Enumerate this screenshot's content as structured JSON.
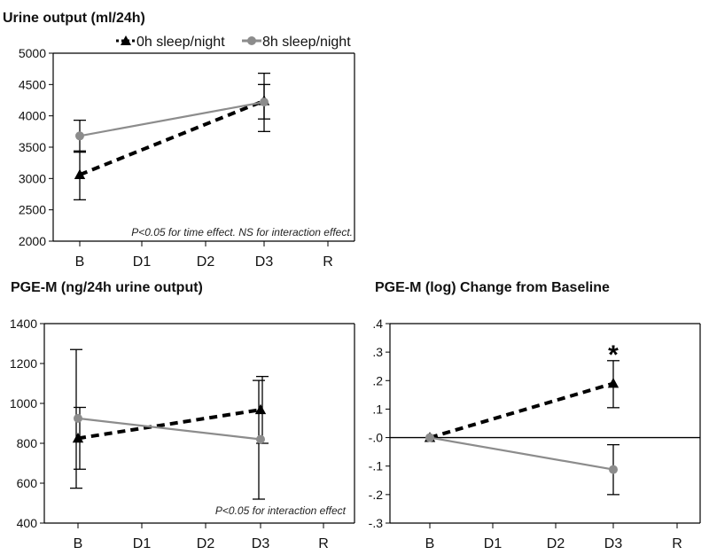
{
  "chart_data": [
    {
      "type": "line",
      "title": "Urine output (ml/24h)",
      "categories": [
        "B",
        "D1",
        "D2",
        "D3",
        "R"
      ],
      "ylim": [
        2000,
        5000
      ],
      "yticks": [
        2000,
        2500,
        3000,
        3500,
        4000,
        4500,
        5000
      ],
      "ytick_labels": [
        "2000",
        "2500",
        "3000",
        "3500",
        "4000",
        "4500",
        "5000"
      ],
      "grid": false,
      "legend_position": "top",
      "annotation": "P<0.05 for time effect. NS for interaction effect.",
      "series": [
        {
          "name": "0h sleep/night",
          "color": "#000000",
          "marker": "triangle",
          "dash": true,
          "x": [
            "B",
            "D3"
          ],
          "values": [
            3060,
            4240
          ],
          "err_low": [
            2660,
            3750
          ],
          "err_high": [
            3440,
            4680
          ]
        },
        {
          "name": "8h sleep/night",
          "color": "#8c8c8c",
          "marker": "circle",
          "dash": false,
          "x": [
            "B",
            "D3"
          ],
          "values": [
            3680,
            4220
          ],
          "err_low": [
            3420,
            3950
          ],
          "err_high": [
            3930,
            4500
          ]
        }
      ]
    },
    {
      "type": "line",
      "title": "PGE-M (ng/24h urine output)",
      "categories": [
        "B",
        "D1",
        "D2",
        "D3",
        "R"
      ],
      "ylim": [
        400,
        1400
      ],
      "yticks": [
        400,
        600,
        800,
        1000,
        1200,
        1400
      ],
      "ytick_labels": [
        "400",
        "600",
        "800",
        "1000",
        "1200",
        "1400"
      ],
      "grid": false,
      "annotation": "P<0.05 for interaction effect",
      "series": [
        {
          "name": "0h sleep/night",
          "color": "#000000",
          "marker": "triangle",
          "dash": true,
          "x": [
            "B",
            "D3"
          ],
          "values": [
            825,
            968
          ],
          "err_low": [
            670,
            800
          ],
          "err_high": [
            980,
            1135
          ]
        },
        {
          "name": "8h sleep/night",
          "color": "#8c8c8c",
          "marker": "circle",
          "dash": false,
          "x": [
            "B",
            "D3"
          ],
          "values": [
            925,
            820
          ],
          "err_low": [
            575,
            520
          ],
          "err_high": [
            1270,
            1115
          ]
        }
      ]
    },
    {
      "type": "line",
      "title": "PGE-M (log) Change from Baseline",
      "categories": [
        "B",
        "D1",
        "D2",
        "D3",
        "R"
      ],
      "ylim": [
        -0.3,
        0.4
      ],
      "yticks": [
        -0.3,
        -0.2,
        -0.1,
        0,
        0.1,
        0.2,
        0.3,
        0.4
      ],
      "ytick_labels": [
        "-.3",
        "-.2",
        "-.1",
        "-.0",
        ".1",
        ".2",
        ".3",
        ".4"
      ],
      "grid": false,
      "zero_line": true,
      "annotation": "*",
      "annotation_at": "D3",
      "series": [
        {
          "name": "0h sleep/night",
          "color": "#000000",
          "marker": "triangle",
          "dash": true,
          "x": [
            "B",
            "D3"
          ],
          "values": [
            0.0,
            0.19
          ],
          "err_low": [
            0.0,
            0.105
          ],
          "err_high": [
            0.0,
            0.27
          ]
        },
        {
          "name": "8h sleep/night",
          "color": "#8c8c8c",
          "marker": "circle",
          "dash": false,
          "x": [
            "B",
            "D3"
          ],
          "values": [
            0.0,
            -0.112
          ],
          "err_low": [
            0.0,
            -0.2
          ],
          "err_high": [
            0.0,
            -0.025
          ]
        }
      ]
    }
  ]
}
